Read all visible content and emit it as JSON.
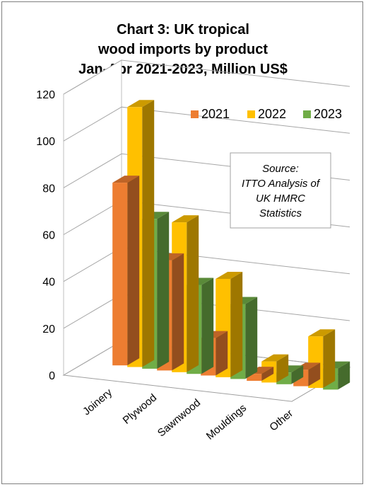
{
  "chart_data": {
    "type": "bar",
    "title": [
      "Chart 3: UK tropical",
      "wood imports by product",
      "Jan-Apr 2021-2023, Million US$"
    ],
    "categories": [
      "Joinery",
      "Plywood",
      "Sawnwood",
      "Mouldings",
      "Other"
    ],
    "series": [
      {
        "name": "2021",
        "color": "#ED7D31",
        "values": [
          78,
          47,
          16,
          3,
          7
        ]
      },
      {
        "name": "2022",
        "color": "#FFC000",
        "values": [
          111,
          64,
          42,
          9,
          22
        ]
      },
      {
        "name": "2023",
        "color": "#70AD47",
        "values": [
          64,
          38,
          32,
          5,
          9
        ]
      }
    ],
    "y_ticks": [
      "0",
      "20",
      "40",
      "60",
      "80",
      "100",
      "120"
    ],
    "ylim": [
      0,
      120
    ],
    "xlabel": "",
    "ylabel": "",
    "grid": true,
    "legend_position": "top-right",
    "three_d": true,
    "annotation": [
      "Source:",
      "ITTO Analysis of",
      "UK HMRC",
      "Statistics"
    ]
  }
}
